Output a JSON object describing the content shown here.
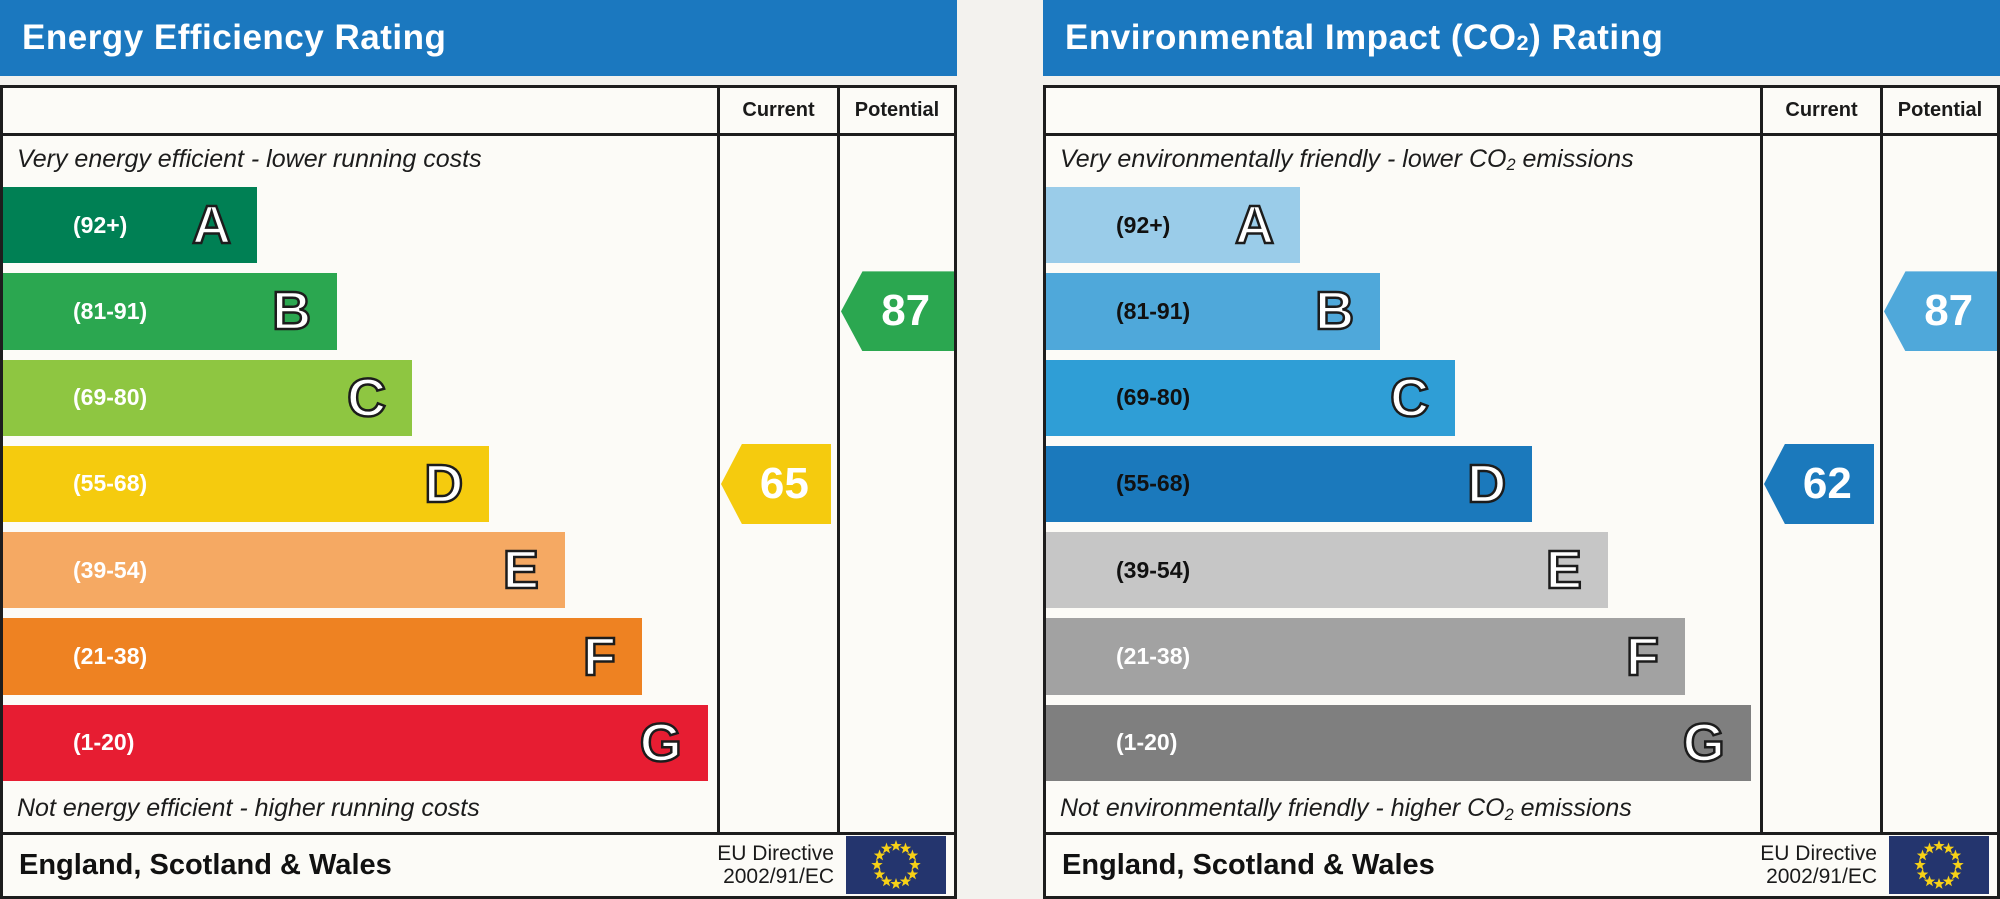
{
  "colors": {
    "header_bar": "#1b78bf",
    "table_border": "#1d1d1d",
    "flag_field": "#24356e",
    "flag_stars": "#f7d117"
  },
  "panels": [
    {
      "title": {
        "pre": "Energy Efficiency Rating",
        "sub": "",
        "post": ""
      },
      "columns": {
        "current": "Current",
        "potential": "Potential"
      },
      "captions": {
        "top": {
          "pre": "Very energy efficient - lower running costs",
          "sub": "",
          "post": ""
        },
        "bottom": {
          "pre": "Not energy efficient - higher running costs",
          "sub": "",
          "post": ""
        }
      },
      "bands": [
        {
          "range": "(92+)",
          "letter": "A",
          "color": "#008054",
          "width_pct": 35.6,
          "range_color": "#ffffff"
        },
        {
          "range": "(81-91)",
          "letter": "B",
          "color": "#2ba750",
          "width_pct": 46.8,
          "range_color": "#ffffff"
        },
        {
          "range": "(69-80)",
          "letter": "C",
          "color": "#8ec641",
          "width_pct": 57.3,
          "range_color": "#ffffff"
        },
        {
          "range": "(55-68)",
          "letter": "D",
          "color": "#f5cb0e",
          "width_pct": 68.1,
          "range_color": "#ffffff"
        },
        {
          "range": "(39-54)",
          "letter": "E",
          "color": "#f5a963",
          "width_pct": 78.7,
          "range_color": "#ffffff"
        },
        {
          "range": "(21-38)",
          "letter": "F",
          "color": "#ee8222",
          "width_pct": 89.5,
          "range_color": "#ffffff"
        },
        {
          "range": "(1-20)",
          "letter": "G",
          "color": "#e71d32",
          "width_pct": 98.7,
          "range_color": "#ffffff"
        }
      ],
      "current": {
        "value": "65",
        "band_index": 3,
        "color": "#f5cb0e"
      },
      "potential": {
        "value": "87",
        "band_index": 1,
        "color": "#2ba750"
      },
      "footer": {
        "region": "England, Scotland & Wales",
        "directive_line1": "EU Directive",
        "directive_line2": "2002/91/EC"
      }
    },
    {
      "title": {
        "pre": "Environmental Impact (CO",
        "sub": "2",
        "post": ") Rating"
      },
      "columns": {
        "current": "Current",
        "potential": "Potential"
      },
      "captions": {
        "top": {
          "pre": "Very environmentally friendly - lower CO",
          "sub": "2",
          "post": " emissions"
        },
        "bottom": {
          "pre": "Not environmentally friendly - higher CO",
          "sub": "2",
          "post": " emissions"
        }
      },
      "bands": [
        {
          "range": "(92+)",
          "letter": "A",
          "color": "#9acce9",
          "width_pct": 35.6,
          "range_color": "#111111"
        },
        {
          "range": "(81-91)",
          "letter": "B",
          "color": "#4fa8da",
          "width_pct": 46.8,
          "range_color": "#111111"
        },
        {
          "range": "(69-80)",
          "letter": "C",
          "color": "#2f9ed6",
          "width_pct": 57.3,
          "range_color": "#111111"
        },
        {
          "range": "(55-68)",
          "letter": "D",
          "color": "#1b79bc",
          "width_pct": 68.1,
          "range_color": "#111111"
        },
        {
          "range": "(39-54)",
          "letter": "E",
          "color": "#c6c6c6",
          "width_pct": 78.7,
          "range_color": "#111111"
        },
        {
          "range": "(21-38)",
          "letter": "F",
          "color": "#a2a2a2",
          "width_pct": 89.5,
          "range_color": "#ffffff"
        },
        {
          "range": "(1-20)",
          "letter": "G",
          "color": "#7f7f7f",
          "width_pct": 98.7,
          "range_color": "#ffffff"
        }
      ],
      "current": {
        "value": "62",
        "band_index": 3,
        "color": "#1b79bc"
      },
      "potential": {
        "value": "87",
        "band_index": 1,
        "color": "#4fa8da"
      },
      "footer": {
        "region": "England, Scotland & Wales",
        "directive_line1": "EU Directive",
        "directive_line2": "2002/91/EC"
      }
    }
  ],
  "chart_data": [
    {
      "type": "bar",
      "title": "Energy Efficiency Rating",
      "categories": [
        "A",
        "B",
        "C",
        "D",
        "E",
        "F",
        "G"
      ],
      "band_ranges": [
        "92+",
        "81-91",
        "69-80",
        "55-68",
        "39-54",
        "21-38",
        "1-20"
      ],
      "band_colors": [
        "#008054",
        "#2ba750",
        "#8ec641",
        "#f5cb0e",
        "#f5a963",
        "#ee8222",
        "#e71d32"
      ],
      "bar_width_pct": [
        35.6,
        46.8,
        57.3,
        68.1,
        78.7,
        89.5,
        98.7
      ],
      "current": {
        "value": 65,
        "band": "D"
      },
      "potential": {
        "value": 87,
        "band": "B"
      },
      "top_note": "Very energy efficient - lower running costs",
      "bottom_note": "Not energy efficient - higher running costs",
      "footer": "England, Scotland & Wales",
      "directive": "EU Directive 2002/91/EC"
    },
    {
      "type": "bar",
      "title": "Environmental Impact (CO2) Rating",
      "categories": [
        "A",
        "B",
        "C",
        "D",
        "E",
        "F",
        "G"
      ],
      "band_ranges": [
        "92+",
        "81-91",
        "69-80",
        "55-68",
        "39-54",
        "21-38",
        "1-20"
      ],
      "band_colors": [
        "#9acce9",
        "#4fa8da",
        "#2f9ed6",
        "#1b79bc",
        "#c6c6c6",
        "#a2a2a2",
        "#7f7f7f"
      ],
      "bar_width_pct": [
        35.6,
        46.8,
        57.3,
        68.1,
        78.7,
        89.5,
        98.7
      ],
      "current": {
        "value": 62,
        "band": "D"
      },
      "potential": {
        "value": 87,
        "band": "B"
      },
      "top_note": "Very environmentally friendly - lower CO2 emissions",
      "bottom_note": "Not environmentally friendly - higher CO2 emissions",
      "footer": "England, Scotland & Wales",
      "directive": "EU Directive 2002/91/EC"
    }
  ]
}
